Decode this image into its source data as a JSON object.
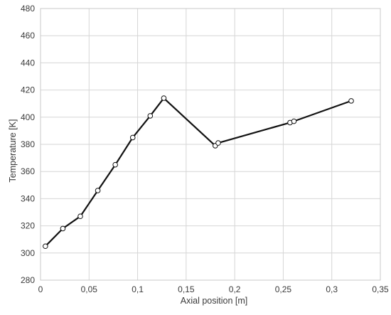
{
  "chart_data": {
    "type": "line",
    "title": "",
    "xlabel": "Axial position [m]",
    "ylabel": "Temperature [K]",
    "xlim": [
      0,
      0.35
    ],
    "ylim": [
      280,
      480
    ],
    "grid": true,
    "legend": "none",
    "x_ticks": [
      0,
      0.05,
      0.1,
      0.15,
      0.2,
      0.25,
      0.3,
      0.35
    ],
    "x_tick_labels": [
      "0",
      "0,05",
      "0,1",
      "0,15",
      "0,2",
      "0,25",
      "0,3",
      "0,35"
    ],
    "y_ticks": [
      280,
      300,
      320,
      340,
      360,
      380,
      400,
      420,
      440,
      460,
      480
    ],
    "y_tick_labels": [
      "280",
      "300",
      "320",
      "340",
      "360",
      "380",
      "400",
      "420",
      "440",
      "460",
      "480"
    ],
    "series": [
      {
        "color": "#111111",
        "marker": "open-circle",
        "x": [
          0.005,
          0.023,
          0.041,
          0.059,
          0.077,
          0.095,
          0.113,
          0.127,
          0.18,
          0.183,
          0.257,
          0.261,
          0.32
        ],
        "y": [
          305,
          318,
          327,
          346,
          365,
          385,
          401,
          414,
          379,
          381,
          396,
          397,
          412
        ]
      }
    ]
  }
}
